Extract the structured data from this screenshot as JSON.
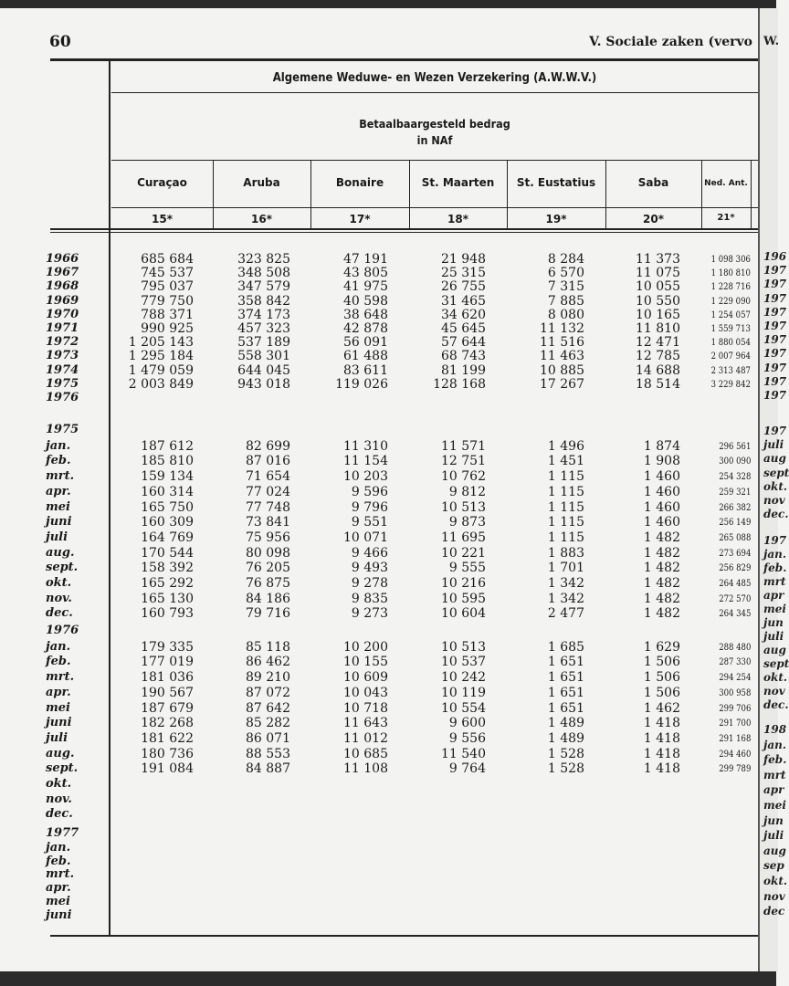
{
  "page": {
    "number": "60",
    "running_head": "V.  Sociale zaken (vervo",
    "running_head_facing": "W."
  },
  "table": {
    "title": "Algemene Weduwe- en Wezen Verzekering (A.W.W.V.)",
    "subtitle_line1": "Betaalbaargesteld bedrag",
    "subtitle_line2": "in NAf",
    "columns": [
      {
        "name": "Curaçao",
        "num": "15*"
      },
      {
        "name": "Aruba",
        "num": "16*"
      },
      {
        "name": "Bonaire",
        "num": "17*"
      },
      {
        "name": "St. Maarten",
        "num": "18*"
      },
      {
        "name": "St. Eustatius",
        "num": "19*"
      },
      {
        "name": "Saba",
        "num": "20*"
      },
      {
        "name": "Ned. Ant.",
        "num": "21*"
      }
    ],
    "sections": [
      {
        "heading": "",
        "rows": [
          {
            "label": "1966",
            "values": [
              "685 684",
              "323 825",
              "47 191",
              "21 948",
              "8 284",
              "11 373",
              "1 098 306"
            ]
          },
          {
            "label": "1967",
            "values": [
              "745 537",
              "348 508",
              "43 805",
              "25 315",
              "6 570",
              "11 075",
              "1 180 810"
            ]
          },
          {
            "label": "1968",
            "values": [
              "795 037",
              "347 579",
              "41 975",
              "26 755",
              "7 315",
              "10 055",
              "1 228 716"
            ]
          },
          {
            "label": "1969",
            "values": [
              "779 750",
              "358 842",
              "40 598",
              "31 465",
              "7 885",
              "10 550",
              "1 229 090"
            ]
          },
          {
            "label": "1970",
            "values": [
              "788 371",
              "374 173",
              "38 648",
              "34 620",
              "8 080",
              "10 165",
              "1 254 057"
            ]
          },
          {
            "label": "1971",
            "values": [
              "990 925",
              "457 323",
              "42 878",
              "45 645",
              "11 132",
              "11 810",
              "1 559 713"
            ]
          },
          {
            "label": "1972",
            "values": [
              "1 205 143",
              "537 189",
              "56 091",
              "57 644",
              "11 516",
              "12 471",
              "1 880 054"
            ]
          },
          {
            "label": "1973",
            "values": [
              "1 295 184",
              "558 301",
              "61 488",
              "68 743",
              "11 463",
              "12 785",
              "2 007 964"
            ]
          },
          {
            "label": "1974",
            "values": [
              "1 479 059",
              "644 045",
              "83 611",
              "81 199",
              "10 885",
              "14 688",
              "2 313 487"
            ]
          },
          {
            "label": "1975",
            "values": [
              "2 003 849",
              "943 018",
              "119 026",
              "128 168",
              "17 267",
              "18 514",
              "3 229 842"
            ]
          },
          {
            "label": "1976",
            "values": [
              "",
              "",
              "",
              "",
              "",
              "",
              ""
            ]
          }
        ]
      },
      {
        "heading": "1975",
        "rows": [
          {
            "label": "jan.",
            "values": [
              "187 612",
              "82 699",
              "11 310",
              "11 571",
              "1 496",
              "1 874",
              "296 561"
            ]
          },
          {
            "label": "feb.",
            "values": [
              "185 810",
              "87 016",
              "11 154",
              "12 751",
              "1 451",
              "1 908",
              "300 090"
            ]
          },
          {
            "label": "mrt.",
            "values": [
              "159 134",
              "71 654",
              "10 203",
              "10 762",
              "1 115",
              "1 460",
              "254 328"
            ]
          },
          {
            "label": "apr.",
            "values": [
              "160 314",
              "77 024",
              "9 596",
              "9 812",
              "1 115",
              "1 460",
              "259 321"
            ]
          },
          {
            "label": "mei",
            "values": [
              "165 750",
              "77 748",
              "9 796",
              "10 513",
              "1 115",
              "1 460",
              "266 382"
            ]
          },
          {
            "label": "juni",
            "values": [
              "160 309",
              "73 841",
              "9 551",
              "9 873",
              "1 115",
              "1 460",
              "256 149"
            ]
          },
          {
            "label": "juli",
            "values": [
              "164 769",
              "75 956",
              "10 071",
              "11 695",
              "1 115",
              "1 482",
              "265 088"
            ]
          },
          {
            "label": "aug.",
            "values": [
              "170 544",
              "80 098",
              "9 466",
              "10 221",
              "1 883",
              "1 482",
              "273 694"
            ]
          },
          {
            "label": "sept.",
            "values": [
              "158 392",
              "76 205",
              "9 493",
              "9 555",
              "1 701",
              "1 482",
              "256 829"
            ]
          },
          {
            "label": "okt.",
            "values": [
              "165 292",
              "76 875",
              "9 278",
              "10 216",
              "1 342",
              "1 482",
              "264 485"
            ]
          },
          {
            "label": "nov.",
            "values": [
              "165 130",
              "84 186",
              "9 835",
              "10 595",
              "1 342",
              "1 482",
              "272 570"
            ]
          },
          {
            "label": "dec.",
            "values": [
              "160 793",
              "79 716",
              "9 273",
              "10 604",
              "2 477",
              "1 482",
              "264 345"
            ]
          }
        ]
      },
      {
        "heading": "1976",
        "rows": [
          {
            "label": "jan.",
            "values": [
              "179 335",
              "85 118",
              "10 200",
              "10 513",
              "1 685",
              "1 629",
              "288 480"
            ]
          },
          {
            "label": "feb.",
            "values": [
              "177 019",
              "86 462",
              "10 155",
              "10 537",
              "1 651",
              "1 506",
              "287 330"
            ]
          },
          {
            "label": "mrt.",
            "values": [
              "181 036",
              "89 210",
              "10 609",
              "10 242",
              "1 651",
              "1 506",
              "294 254"
            ]
          },
          {
            "label": "apr.",
            "values": [
              "190 567",
              "87 072",
              "10 043",
              "10 119",
              "1 651",
              "1 506",
              "300 958"
            ]
          },
          {
            "label": "mei",
            "values": [
              "187 679",
              "87 642",
              "10 718",
              "10 554",
              "1 651",
              "1 462",
              "299 706"
            ]
          },
          {
            "label": "juni",
            "values": [
              "182 268",
              "85 282",
              "11 643",
              "9 600",
              "1 489",
              "1 418",
              "291 700"
            ]
          },
          {
            "label": "juli",
            "values": [
              "181 622",
              "86 071",
              "11 012",
              "9 556",
              "1 489",
              "1 418",
              "291 168"
            ]
          },
          {
            "label": "aug.",
            "values": [
              "180 736",
              "88 553",
              "10 685",
              "11 540",
              "1 528",
              "1 418",
              "294 460"
            ]
          },
          {
            "label": "sept.",
            "values": [
              "191 084",
              "84 887",
              "11 108",
              "9 764",
              "1 528",
              "1 418",
              "299 789"
            ]
          },
          {
            "label": "okt.",
            "values": [
              "",
              "",
              "",
              "",
              "",
              "",
              ""
            ]
          },
          {
            "label": "nov.",
            "values": [
              "",
              "",
              "",
              "",
              "",
              "",
              ""
            ]
          },
          {
            "label": "dec.",
            "values": [
              "",
              "",
              "",
              "",
              "",
              "",
              ""
            ]
          }
        ]
      },
      {
        "heading": "1977",
        "rows": [
          {
            "label": "jan.",
            "values": [
              "",
              "",
              "",
              "",
              "",
              "",
              ""
            ]
          },
          {
            "label": "feb.",
            "values": [
              "",
              "",
              "",
              "",
              "",
              "",
              ""
            ]
          },
          {
            "label": "mrt.",
            "values": [
              "",
              "",
              "",
              "",
              "",
              "",
              ""
            ]
          },
          {
            "label": "apr.",
            "values": [
              "",
              "",
              "",
              "",
              "",
              "",
              ""
            ]
          },
          {
            "label": "mei",
            "values": [
              "",
              "",
              "",
              "",
              "",
              "",
              ""
            ]
          },
          {
            "label": "juni",
            "values": [
              "",
              "",
              "",
              "",
              "",
              "",
              ""
            ]
          }
        ]
      }
    ]
  },
  "facing_page_edge": {
    "block1": [
      "196",
      "197",
      "197",
      "197",
      "197",
      "197",
      "197",
      "197",
      "197",
      "197",
      "197"
    ],
    "block2": [
      "197",
      "juli",
      "aug",
      "sept",
      "okt.",
      "nov",
      "dec."
    ],
    "block3": [
      "197",
      "jan.",
      "feb.",
      "mrt",
      "apr",
      "mei",
      "jun",
      "juli",
      "aug",
      "sept",
      "okt.",
      "nov",
      "dec."
    ],
    "block4": [
      "198",
      "jan.",
      "feb.",
      "mrt",
      "apr",
      "mei",
      "jun",
      "juli",
      "aug",
      "sep",
      "okt.",
      "nov",
      "dec"
    ]
  }
}
